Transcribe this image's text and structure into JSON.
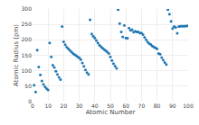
{
  "chart_data": {
    "type": "scatter",
    "xlabel": "Atomic Number",
    "ylabel": "Atomic Radius (pm)",
    "x": [
      1,
      2,
      3,
      4,
      5,
      6,
      7,
      8,
      9,
      10,
      11,
      12,
      13,
      14,
      15,
      16,
      17,
      18,
      19,
      20,
      21,
      22,
      23,
      24,
      25,
      26,
      27,
      28,
      29,
      30,
      31,
      32,
      33,
      34,
      35,
      36,
      37,
      38,
      39,
      40,
      41,
      42,
      43,
      44,
      45,
      46,
      47,
      48,
      49,
      50,
      51,
      52,
      53,
      54,
      55,
      56,
      57,
      58,
      59,
      60,
      61,
      62,
      63,
      64,
      65,
      66,
      67,
      68,
      69,
      70,
      71,
      72,
      73,
      74,
      75,
      76,
      77,
      78,
      79,
      80,
      81,
      82,
      83,
      84,
      85,
      86,
      87,
      88,
      89,
      90,
      91,
      92,
      93,
      94,
      95,
      96,
      97,
      98,
      99,
      100
    ],
    "values": [
      53,
      31,
      167,
      112,
      87,
      67,
      56,
      48,
      42,
      38,
      190,
      145,
      118,
      111,
      98,
      88,
      79,
      71,
      243,
      194,
      184,
      176,
      171,
      166,
      161,
      156,
      152,
      149,
      145,
      142,
      136,
      125,
      114,
      103,
      94,
      88,
      265,
      219,
      212,
      206,
      198,
      190,
      183,
      178,
      173,
      169,
      165,
      161,
      156,
      145,
      133,
      123,
      115,
      108,
      298,
      253,
      226,
      210,
      247,
      206,
      205,
      238,
      231,
      233,
      225,
      228,
      226,
      226,
      222,
      222,
      217,
      208,
      200,
      193,
      188,
      185,
      180,
      177,
      174,
      171,
      156,
      154,
      143,
      135,
      127,
      120,
      298,
      283,
      260,
      237,
      243,
      240,
      221,
      243,
      244,
      245,
      244,
      245,
      245,
      246
    ],
    "xlim": [
      0,
      100
    ],
    "ylim": [
      0,
      300
    ],
    "xticks": [
      0,
      10,
      20,
      30,
      40,
      50,
      60,
      70,
      80,
      90,
      100
    ],
    "yticks": [
      0,
      50,
      100,
      150,
      200,
      250,
      300
    ],
    "grid": true
  }
}
